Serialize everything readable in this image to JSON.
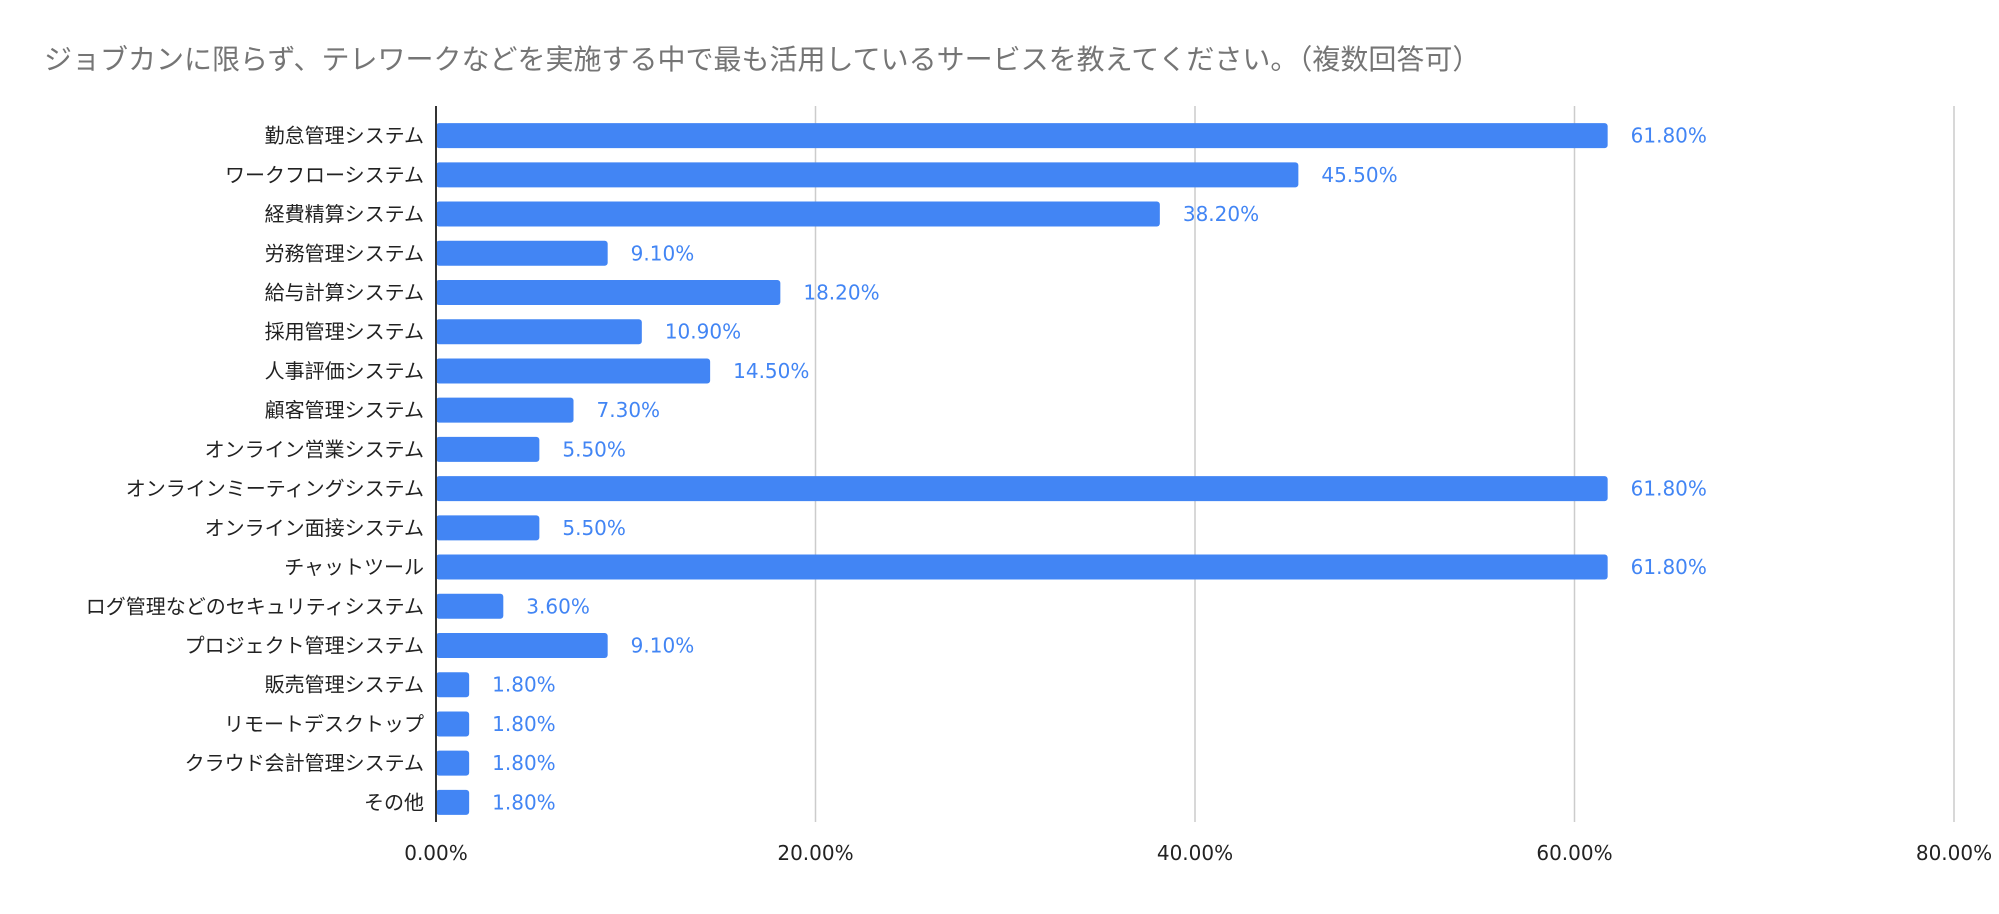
{
  "chart_data": {
    "type": "bar",
    "orientation": "horizontal",
    "title": "ジョブカンに限らず、テレワークなどを実施する中で最も活用しているサービスを教えてください。（複数回答可）",
    "categories": [
      "勤怠管理システム",
      "ワークフローシステム",
      "経費精算システム",
      "労務管理システム",
      "給与計算システム",
      "採用管理システム",
      "人事評価システム",
      "顧客管理システム",
      "オンライン営業システム",
      "オンラインミーティングシステム",
      "オンライン面接システム",
      "チャットツール",
      "ログ管理などのセキュリティシステム",
      "プロジェクト管理システム",
      "販売管理システム",
      "リモートデスクトップ",
      "クラウド会計管理システム",
      "その他"
    ],
    "values": [
      61.8,
      45.5,
      38.2,
      9.1,
      18.2,
      10.9,
      14.5,
      7.3,
      5.5,
      61.8,
      5.5,
      61.8,
      3.6,
      9.1,
      1.8,
      1.8,
      1.8,
      1.8
    ],
    "data_labels": [
      "61.80%",
      "45.50%",
      "38.20%",
      "9.10%",
      "18.20%",
      "10.90%",
      "14.50%",
      "7.30%",
      "5.50%",
      "61.80%",
      "5.50%",
      "61.80%",
      "3.60%",
      "9.10%",
      "1.80%",
      "1.80%",
      "1.80%",
      "1.80%"
    ],
    "xlim": [
      0,
      80
    ],
    "x_ticks": [
      0,
      20,
      40,
      60,
      80
    ],
    "x_tick_labels": [
      "0.00%",
      "20.00%",
      "40.00%",
      "60.00%",
      "80.00%"
    ],
    "xlabel": "",
    "ylabel": "",
    "grid": true,
    "legend": "none",
    "colors": {
      "bar": "#4285f4",
      "data_label": "#4285f4",
      "title": "#757575",
      "category_label": "#222222",
      "tick_label": "#222222",
      "gridline": "#cccccc",
      "axis": "#333333"
    }
  }
}
